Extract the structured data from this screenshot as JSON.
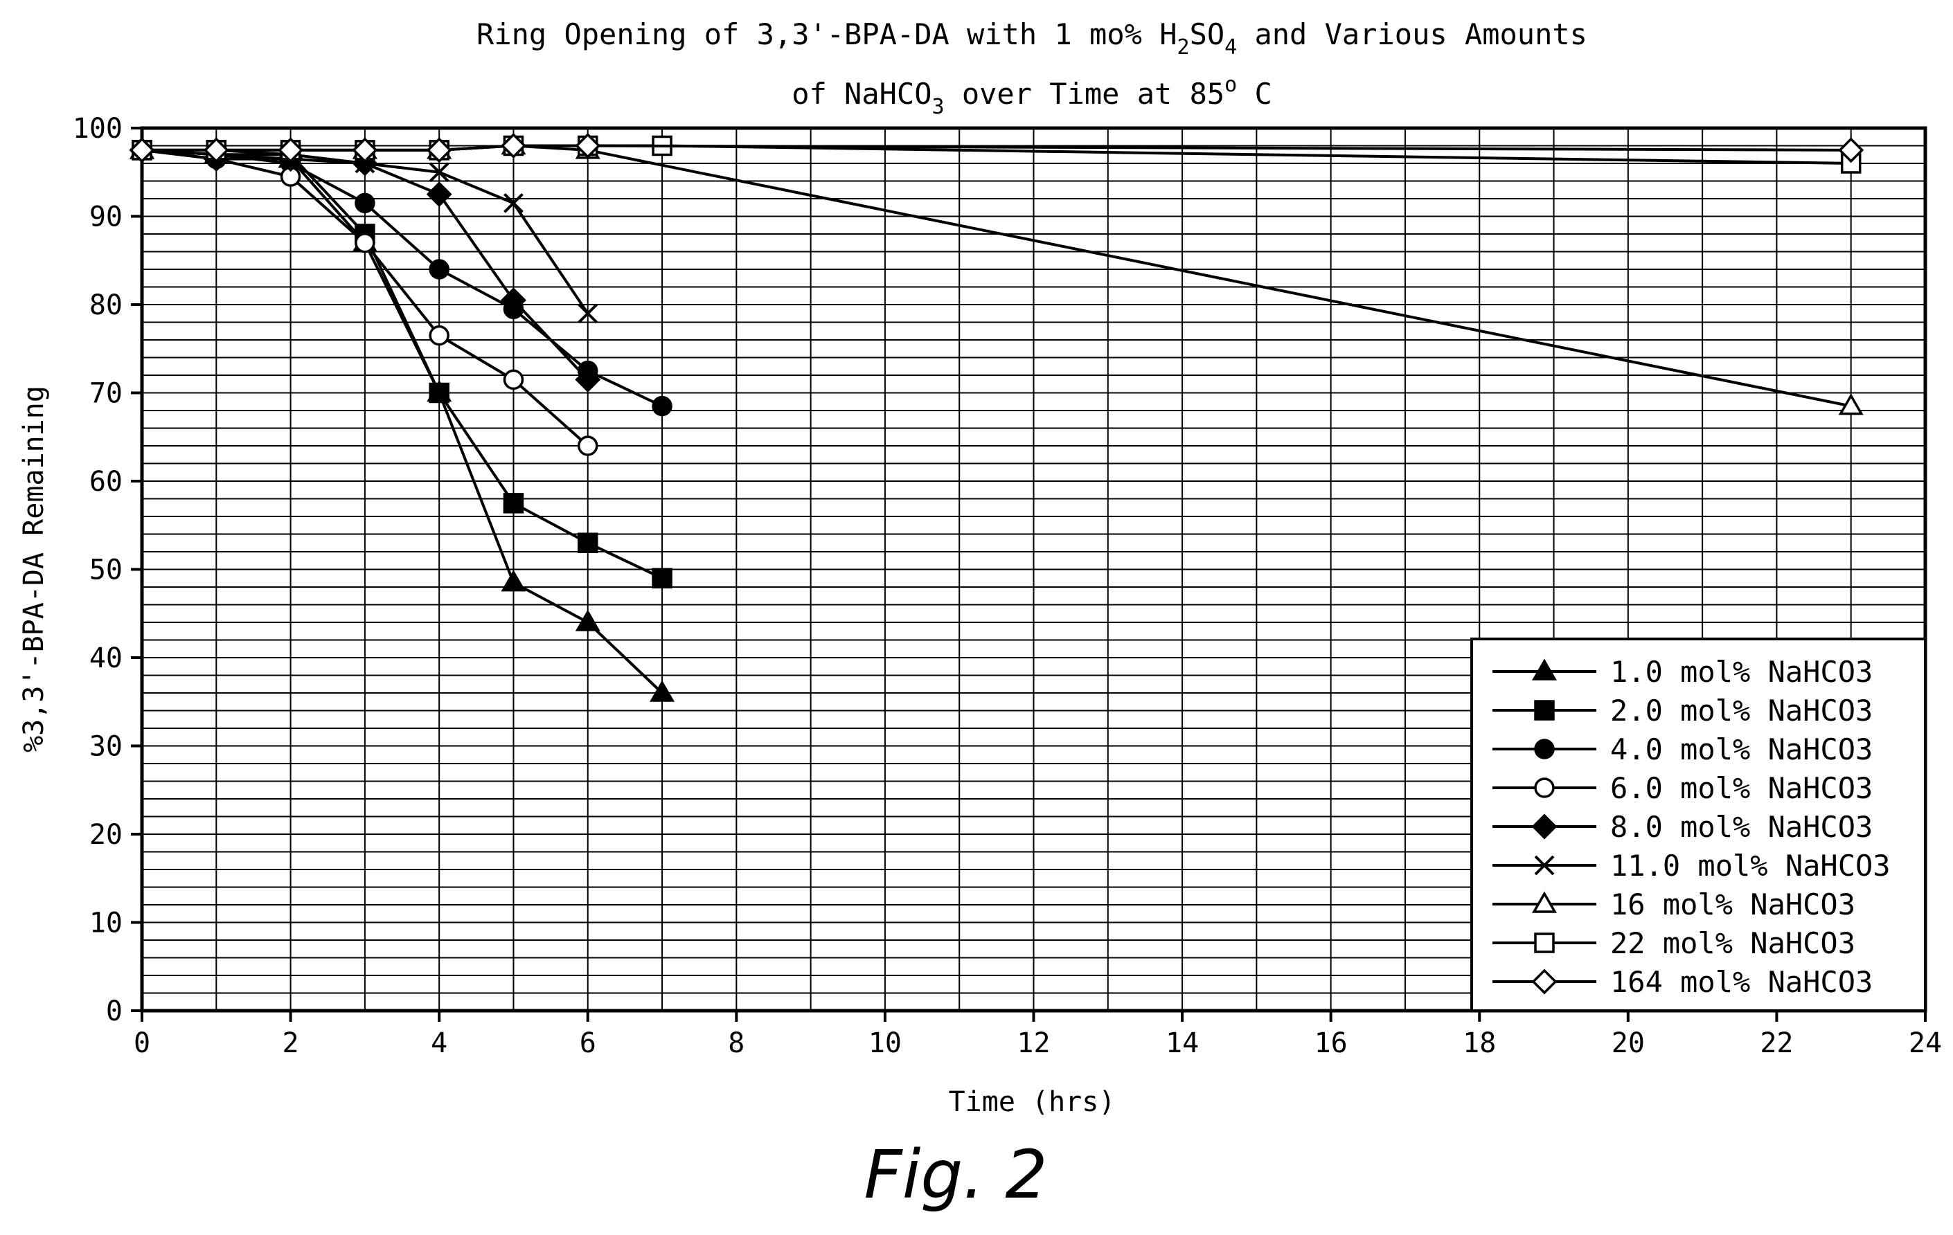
{
  "caption": "Fig. 2",
  "chart_data": {
    "type": "line",
    "title": {
      "line1": {
        "before": "Ring Opening of 3,3'-BPA-DA with 1 mo% H",
        "sub1": "2",
        "mid": "SO",
        "sub2": "4",
        "after": " and Various Amounts"
      },
      "line2": {
        "before": "of NaHCO",
        "sub": "3",
        "mid": " over Time at 85",
        "sup": "o",
        "after": " C"
      }
    },
    "xlabel": "Time (hrs)",
    "ylabel": "%3,3'-BPA-DA Remaining",
    "xlim": [
      0,
      24
    ],
    "ylim": [
      0,
      100
    ],
    "xticks": [
      0,
      2,
      4,
      6,
      8,
      10,
      12,
      14,
      16,
      18,
      20,
      22,
      24
    ],
    "yticks": [
      0,
      10,
      20,
      30,
      40,
      50,
      60,
      70,
      80,
      90,
      100
    ],
    "grid": true,
    "legend_position": "bottom-right",
    "series": [
      {
        "name": "1.0 mol% NaHCO3",
        "marker": "triangle-filled",
        "x": [
          0,
          1,
          2,
          3,
          4,
          5,
          6,
          7
        ],
        "y": [
          97.5,
          97,
          96.5,
          87,
          70,
          48.5,
          44,
          36
        ]
      },
      {
        "name": "2.0 mol% NaHCO3",
        "marker": "square-filled",
        "x": [
          0,
          1,
          2,
          3,
          4,
          5,
          6,
          7
        ],
        "y": [
          97.5,
          97.5,
          97,
          88,
          70,
          57.5,
          53,
          49
        ]
      },
      {
        "name": "4.0 mol% NaHCO3",
        "marker": "circle-filled",
        "x": [
          0,
          1,
          2,
          3,
          4,
          5,
          6,
          7
        ],
        "y": [
          97.5,
          97,
          96,
          91.5,
          84,
          79.5,
          72.5,
          68.5
        ]
      },
      {
        "name": "6.0 mol% NaHCO3",
        "marker": "circle-open",
        "x": [
          0,
          1,
          2,
          3,
          4,
          5,
          6
        ],
        "y": [
          97.5,
          96.5,
          94.5,
          87,
          76.5,
          71.5,
          64
        ]
      },
      {
        "name": "8.0 mol% NaHCO3",
        "marker": "diamond-filled",
        "x": [
          0,
          1,
          2,
          3,
          4,
          5,
          6
        ],
        "y": [
          97.5,
          96.5,
          96.5,
          96,
          92.5,
          80.5,
          71.5
        ]
      },
      {
        "name": "11.0 mol% NaHCO3",
        "marker": "x",
        "x": [
          0,
          1,
          2,
          3,
          4,
          5,
          6
        ],
        "y": [
          97.5,
          97,
          97,
          96,
          95,
          91.5,
          79
        ]
      },
      {
        "name": "16 mol% NaHCO3",
        "marker": "triangle-open",
        "x": [
          0,
          1,
          2,
          3,
          4,
          5,
          6,
          23
        ],
        "y": [
          97.5,
          97.5,
          97.5,
          97.5,
          97.5,
          98,
          97.5,
          68.5
        ]
      },
      {
        "name": "22 mol% NaHCO3",
        "marker": "square-open",
        "x": [
          0,
          1,
          2,
          3,
          4,
          5,
          6,
          7,
          23
        ],
        "y": [
          97.5,
          97.5,
          97.5,
          97.5,
          97.5,
          98,
          98,
          98,
          96
        ]
      },
      {
        "name": "164 mol% NaHCO3",
        "marker": "diamond-open",
        "x": [
          0,
          1,
          2,
          3,
          4,
          5,
          6,
          23
        ],
        "y": [
          97.5,
          97.5,
          97.5,
          97.5,
          97.5,
          98,
          98,
          97.5
        ]
      }
    ]
  }
}
